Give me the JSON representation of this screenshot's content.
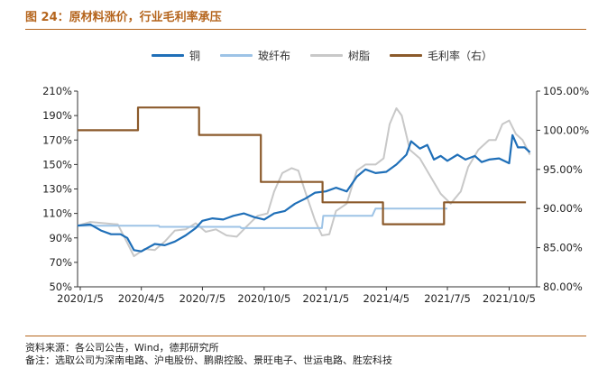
{
  "figure": {
    "title": "图 24：原材料涨价，行业毛利率承压",
    "source": "资料来源：各公司公告，Wind，德邦研究所",
    "note": "备注：选取公司为深南电路、沪电股份、鹏鼎控股、景旺电子、世运电路、胜宏科技"
  },
  "chart_data": {
    "type": "line",
    "x_tick_labels": [
      "2020/1/5",
      "2020/4/5",
      "2020/7/5",
      "2020/10/5",
      "2021/1/5",
      "2021/4/5",
      "2021/7/5",
      "2021/10/5"
    ],
    "x_tick_dates": [
      "2020-01-05",
      "2020-04-05",
      "2020-07-05",
      "2020-10-05",
      "2021-01-05",
      "2021-04-05",
      "2021-07-05",
      "2021-10-05"
    ],
    "xlim": [
      "2020-01-01",
      "2021-11-15"
    ],
    "y_left": {
      "ylim": [
        50,
        210
      ],
      "ticks": [
        "50%",
        "70%",
        "90%",
        "110%",
        "130%",
        "150%",
        "170%",
        "190%",
        "210%"
      ]
    },
    "y_right": {
      "ylim": [
        80,
        105
      ],
      "ticks": [
        "80.00%",
        "85.00%",
        "90.00%",
        "95.00%",
        "100.00%",
        "105.00%"
      ]
    },
    "grid": false,
    "legend_position": "top",
    "series": [
      {
        "name": "铜",
        "axis": "left",
        "color": "#1f6fb8",
        "width": 2.2,
        "points": [
          [
            "2020-01-01",
            100
          ],
          [
            "2020-01-20",
            101
          ],
          [
            "2020-02-05",
            96
          ],
          [
            "2020-02-20",
            93
          ],
          [
            "2020-03-05",
            93
          ],
          [
            "2020-03-15",
            90
          ],
          [
            "2020-03-25",
            80
          ],
          [
            "2020-04-05",
            79
          ],
          [
            "2020-04-15",
            82
          ],
          [
            "2020-04-25",
            85
          ],
          [
            "2020-05-10",
            84
          ],
          [
            "2020-05-25",
            87
          ],
          [
            "2020-06-10",
            92
          ],
          [
            "2020-06-25",
            98
          ],
          [
            "2020-07-05",
            104
          ],
          [
            "2020-07-20",
            106
          ],
          [
            "2020-08-05",
            105
          ],
          [
            "2020-08-20",
            108
          ],
          [
            "2020-09-05",
            110
          ],
          [
            "2020-09-20",
            107
          ],
          [
            "2020-10-05",
            105
          ],
          [
            "2020-10-20",
            110
          ],
          [
            "2020-11-05",
            112
          ],
          [
            "2020-11-20",
            118
          ],
          [
            "2020-12-05",
            122
          ],
          [
            "2020-12-20",
            127
          ],
          [
            "2021-01-05",
            128
          ],
          [
            "2021-01-20",
            131
          ],
          [
            "2021-02-05",
            128
          ],
          [
            "2021-02-20",
            140
          ],
          [
            "2021-03-05",
            146
          ],
          [
            "2021-03-20",
            143
          ],
          [
            "2021-04-05",
            144
          ],
          [
            "2021-04-20",
            150
          ],
          [
            "2021-05-05",
            158
          ],
          [
            "2021-05-12",
            169
          ],
          [
            "2021-05-25",
            163
          ],
          [
            "2021-06-05",
            166
          ],
          [
            "2021-06-15",
            154
          ],
          [
            "2021-06-25",
            157
          ],
          [
            "2021-07-05",
            153
          ],
          [
            "2021-07-20",
            158
          ],
          [
            "2021-08-01",
            154
          ],
          [
            "2021-08-15",
            157
          ],
          [
            "2021-08-25",
            152
          ],
          [
            "2021-09-05",
            154
          ],
          [
            "2021-09-20",
            155
          ],
          [
            "2021-10-05",
            151
          ],
          [
            "2021-10-10",
            174
          ],
          [
            "2021-10-18",
            164
          ],
          [
            "2021-10-28",
            164
          ],
          [
            "2021-11-05",
            160
          ]
        ]
      },
      {
        "name": "玻纤布",
        "axis": "left",
        "color": "#9dc3e6",
        "width": 2,
        "points": [
          [
            "2020-01-01",
            100
          ],
          [
            "2020-05-01",
            100
          ],
          [
            "2020-05-02",
            99
          ],
          [
            "2020-08-30",
            99
          ],
          [
            "2020-09-01",
            98
          ],
          [
            "2020-12-30",
            98
          ],
          [
            "2021-01-01",
            108
          ],
          [
            "2021-03-15",
            108
          ],
          [
            "2021-03-20",
            114
          ],
          [
            "2021-07-05",
            114
          ]
        ]
      },
      {
        "name": "树脂",
        "axis": "left",
        "color": "#c8c8c8",
        "width": 2,
        "points": [
          [
            "2020-01-01",
            100
          ],
          [
            "2020-01-20",
            103
          ],
          [
            "2020-02-10",
            102
          ],
          [
            "2020-03-01",
            101
          ],
          [
            "2020-03-15",
            86
          ],
          [
            "2020-03-25",
            75
          ],
          [
            "2020-04-10",
            81
          ],
          [
            "2020-04-25",
            80
          ],
          [
            "2020-05-10",
            87
          ],
          [
            "2020-05-25",
            96
          ],
          [
            "2020-06-10",
            97
          ],
          [
            "2020-06-25",
            102
          ],
          [
            "2020-07-10",
            95
          ],
          [
            "2020-07-25",
            97
          ],
          [
            "2020-08-10",
            92
          ],
          [
            "2020-08-25",
            91
          ],
          [
            "2020-09-10",
            100
          ],
          [
            "2020-09-25",
            108
          ],
          [
            "2020-10-10",
            110
          ],
          [
            "2020-10-20",
            128
          ],
          [
            "2020-11-01",
            143
          ],
          [
            "2020-11-15",
            147
          ],
          [
            "2020-11-25",
            145
          ],
          [
            "2020-12-05",
            128
          ],
          [
            "2020-12-20",
            104
          ],
          [
            "2020-12-30",
            92
          ],
          [
            "2021-01-10",
            93
          ],
          [
            "2021-01-20",
            112
          ],
          [
            "2021-02-05",
            118
          ],
          [
            "2021-02-20",
            145
          ],
          [
            "2021-03-05",
            150
          ],
          [
            "2021-03-20",
            150
          ],
          [
            "2021-04-01",
            155
          ],
          [
            "2021-04-10",
            183
          ],
          [
            "2021-04-20",
            196
          ],
          [
            "2021-04-28",
            190
          ],
          [
            "2021-05-10",
            162
          ],
          [
            "2021-05-25",
            155
          ],
          [
            "2021-06-10",
            140
          ],
          [
            "2021-06-25",
            126
          ],
          [
            "2021-07-10",
            118
          ],
          [
            "2021-07-25",
            128
          ],
          [
            "2021-08-05",
            148
          ],
          [
            "2021-08-20",
            162
          ],
          [
            "2021-09-05",
            170
          ],
          [
            "2021-09-15",
            170
          ],
          [
            "2021-09-25",
            183
          ],
          [
            "2021-10-05",
            186
          ],
          [
            "2021-10-15",
            175
          ],
          [
            "2021-10-25",
            170
          ],
          [
            "2021-11-05",
            158
          ]
        ]
      },
      {
        "name": "毛利率（右）",
        "axis": "right",
        "color": "#8b5a2b",
        "width": 2.2,
        "step": true,
        "points": [
          [
            "2020-01-01",
            100.0
          ],
          [
            "2020-03-31",
            102.9
          ],
          [
            "2020-06-30",
            99.4
          ],
          [
            "2020-09-30",
            93.4
          ],
          [
            "2020-12-31",
            90.8
          ],
          [
            "2021-03-31",
            88.0
          ],
          [
            "2021-06-30",
            90.8
          ],
          [
            "2021-09-30",
            90.8
          ]
        ],
        "end": "2021-09-30"
      }
    ]
  }
}
